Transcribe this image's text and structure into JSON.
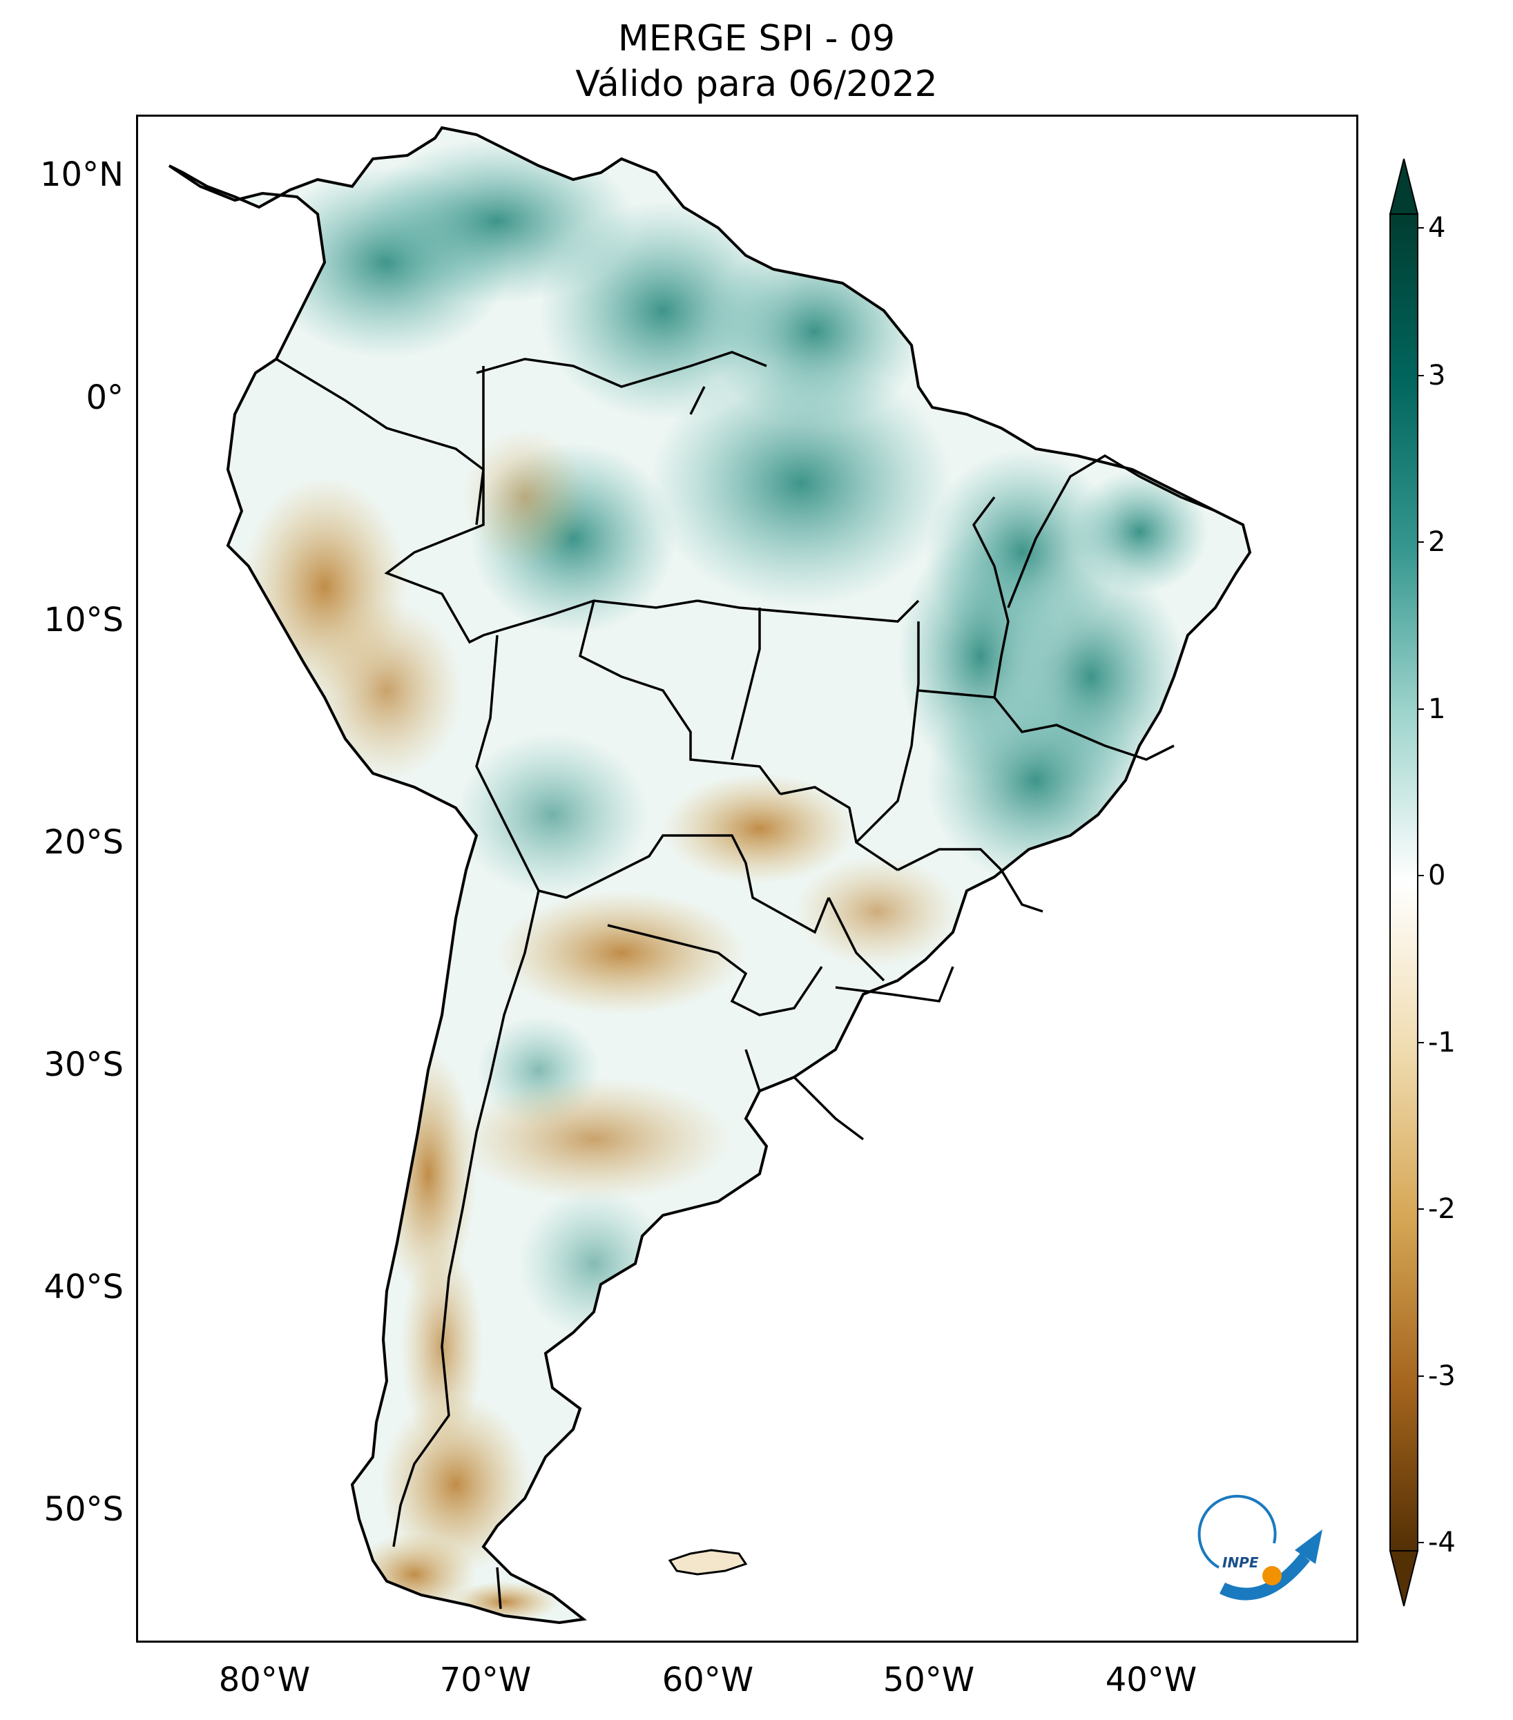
{
  "title": {
    "line1": "MERGE   SPI - 09",
    "line2": "Válido para 06/2022"
  },
  "latitude_labels": [
    "10°N",
    "0°",
    "10°S",
    "20°S",
    "30°S",
    "40°S",
    "50°S"
  ],
  "longitude_labels": [
    "80°W",
    "70°W",
    "60°W",
    "50°W",
    "40°W"
  ],
  "colorbar": {
    "ticks": [
      "4",
      "3",
      "2",
      "1",
      "0",
      "-1",
      "-2",
      "-3",
      "-4"
    ],
    "colors": {
      "max": "#013c30",
      "high": "#35978f",
      "mid": "#ffffff",
      "low": "#bf812d",
      "min": "#543005"
    }
  },
  "logo": {
    "text": "INPE",
    "icon": "inpe-logo-icon"
  },
  "palette": {
    "wet": "#5ab4ac",
    "wet_strong": "#1f7f74",
    "dry": "#d8b365",
    "dry_strong": "#a6611a",
    "land_base": "#e9f4f1"
  }
}
